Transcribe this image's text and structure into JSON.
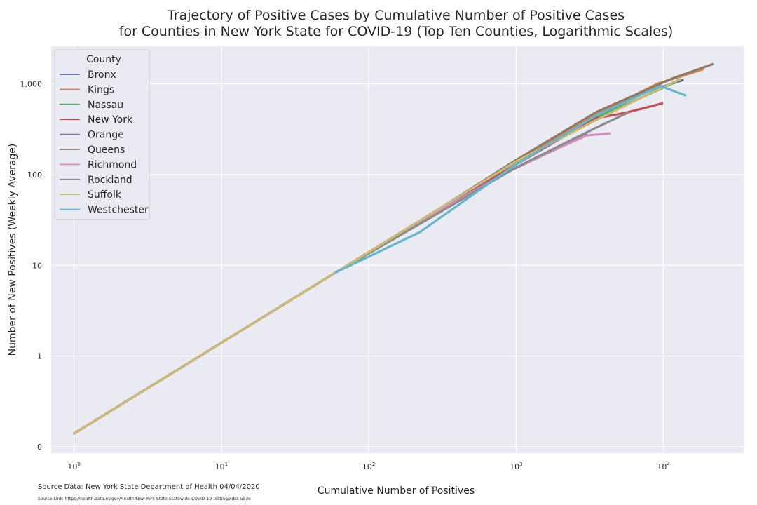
{
  "chart_data": {
    "type": "line",
    "title_lines": [
      "Trajectory of Positive Cases by Cumulative Number of Positive Cases",
      "for Counties in New York State for COVID-19 (Top Ten Counties, Logarithmic Scales)"
    ],
    "xlabel": "Cumulative Number of Positives",
    "ylabel": "Number of New Positives (Weekly Average)",
    "x_scale": "log",
    "y_scale": "log",
    "xlim": [
      0.7,
      35000
    ],
    "ylim": [
      0.085,
      2600
    ],
    "x_ticks": [
      {
        "value": 1,
        "base": "10",
        "exp": "0"
      },
      {
        "value": 10,
        "base": "10",
        "exp": "1"
      },
      {
        "value": 100,
        "base": "10",
        "exp": "2"
      },
      {
        "value": 1000,
        "base": "10",
        "exp": "3"
      },
      {
        "value": 10000,
        "base": "10",
        "exp": "4"
      }
    ],
    "y_ticks": [
      {
        "value": 0.1,
        "label": "0"
      },
      {
        "value": 1,
        "label": "1"
      },
      {
        "value": 10,
        "label": "10"
      },
      {
        "value": 100,
        "label": "100"
      },
      {
        "value": 1000,
        "label": "1,000"
      }
    ],
    "grid": true,
    "legend_position": "upper-left",
    "legend_title": "County",
    "series": [
      {
        "name": "Bronx",
        "color": "#4c72b0",
        "points": [
          [
            1,
            0.14
          ],
          [
            60,
            8.4
          ],
          [
            300,
            40
          ],
          [
            1000,
            135
          ],
          [
            3500,
            430
          ],
          [
            7000,
            780
          ],
          [
            13500,
            1100
          ]
        ]
      },
      {
        "name": "Kings",
        "color": "#dd8452",
        "points": [
          [
            1,
            0.14
          ],
          [
            60,
            8.4
          ],
          [
            300,
            42
          ],
          [
            1000,
            140
          ],
          [
            3500,
            460
          ],
          [
            9000,
            1000
          ],
          [
            18500,
            1450
          ]
        ]
      },
      {
        "name": "Nassau",
        "color": "#55a868",
        "points": [
          [
            1,
            0.14
          ],
          [
            60,
            8.4
          ],
          [
            300,
            38
          ],
          [
            1000,
            135
          ],
          [
            3500,
            430
          ],
          [
            7000,
            700
          ],
          [
            12500,
            1080
          ]
        ]
      },
      {
        "name": "New York",
        "color": "#c44e52",
        "points": [
          [
            1,
            0.14
          ],
          [
            60,
            8.4
          ],
          [
            300,
            40
          ],
          [
            1000,
            130
          ],
          [
            3500,
            420
          ],
          [
            5500,
            480
          ],
          [
            9800,
            610
          ]
        ]
      },
      {
        "name": "Orange",
        "color": "#8172b3",
        "points": [
          [
            1,
            0.14
          ],
          [
            60,
            8.4
          ],
          [
            300,
            40
          ],
          [
            800,
            100
          ],
          [
            3000,
            275
          ]
        ]
      },
      {
        "name": "Queens",
        "color": "#937860",
        "points": [
          [
            1,
            0.14
          ],
          [
            60,
            8.4
          ],
          [
            300,
            42
          ],
          [
            1000,
            145
          ],
          [
            3500,
            490
          ],
          [
            11500,
            1150
          ],
          [
            21500,
            1650
          ]
        ]
      },
      {
        "name": "Richmond",
        "color": "#da8bc3",
        "points": [
          [
            1,
            0.14
          ],
          [
            60,
            8.4
          ],
          [
            300,
            40
          ],
          [
            1000,
            120
          ],
          [
            3000,
            270
          ],
          [
            4300,
            285
          ]
        ]
      },
      {
        "name": "Rockland",
        "color": "#8c8c8c",
        "points": [
          [
            1,
            0.14
          ],
          [
            60,
            8.4
          ],
          [
            300,
            38
          ],
          [
            1000,
            120
          ],
          [
            3500,
            330
          ],
          [
            5700,
            480
          ]
        ]
      },
      {
        "name": "Suffolk",
        "color": "#ccb974",
        "points": [
          [
            1,
            0.14
          ],
          [
            60,
            8.4
          ],
          [
            300,
            42
          ],
          [
            1000,
            140
          ],
          [
            3500,
            400
          ],
          [
            8000,
            780
          ],
          [
            13000,
            1130
          ]
        ]
      },
      {
        "name": "Westchester",
        "color": "#64b5cd",
        "points": [
          [
            60,
            8.4
          ],
          [
            220,
            23
          ],
          [
            1000,
            130
          ],
          [
            3500,
            450
          ],
          [
            9500,
            950
          ],
          [
            14000,
            750
          ]
        ]
      }
    ]
  },
  "footnotes": {
    "source_data": "Source Data: New York State Department of Health 04/04/2020",
    "source_link": "Source Link: https://health.data.ny.gov/Health/New-York-State-Statewide-COVID-19-Testing/xdss-u53e"
  }
}
